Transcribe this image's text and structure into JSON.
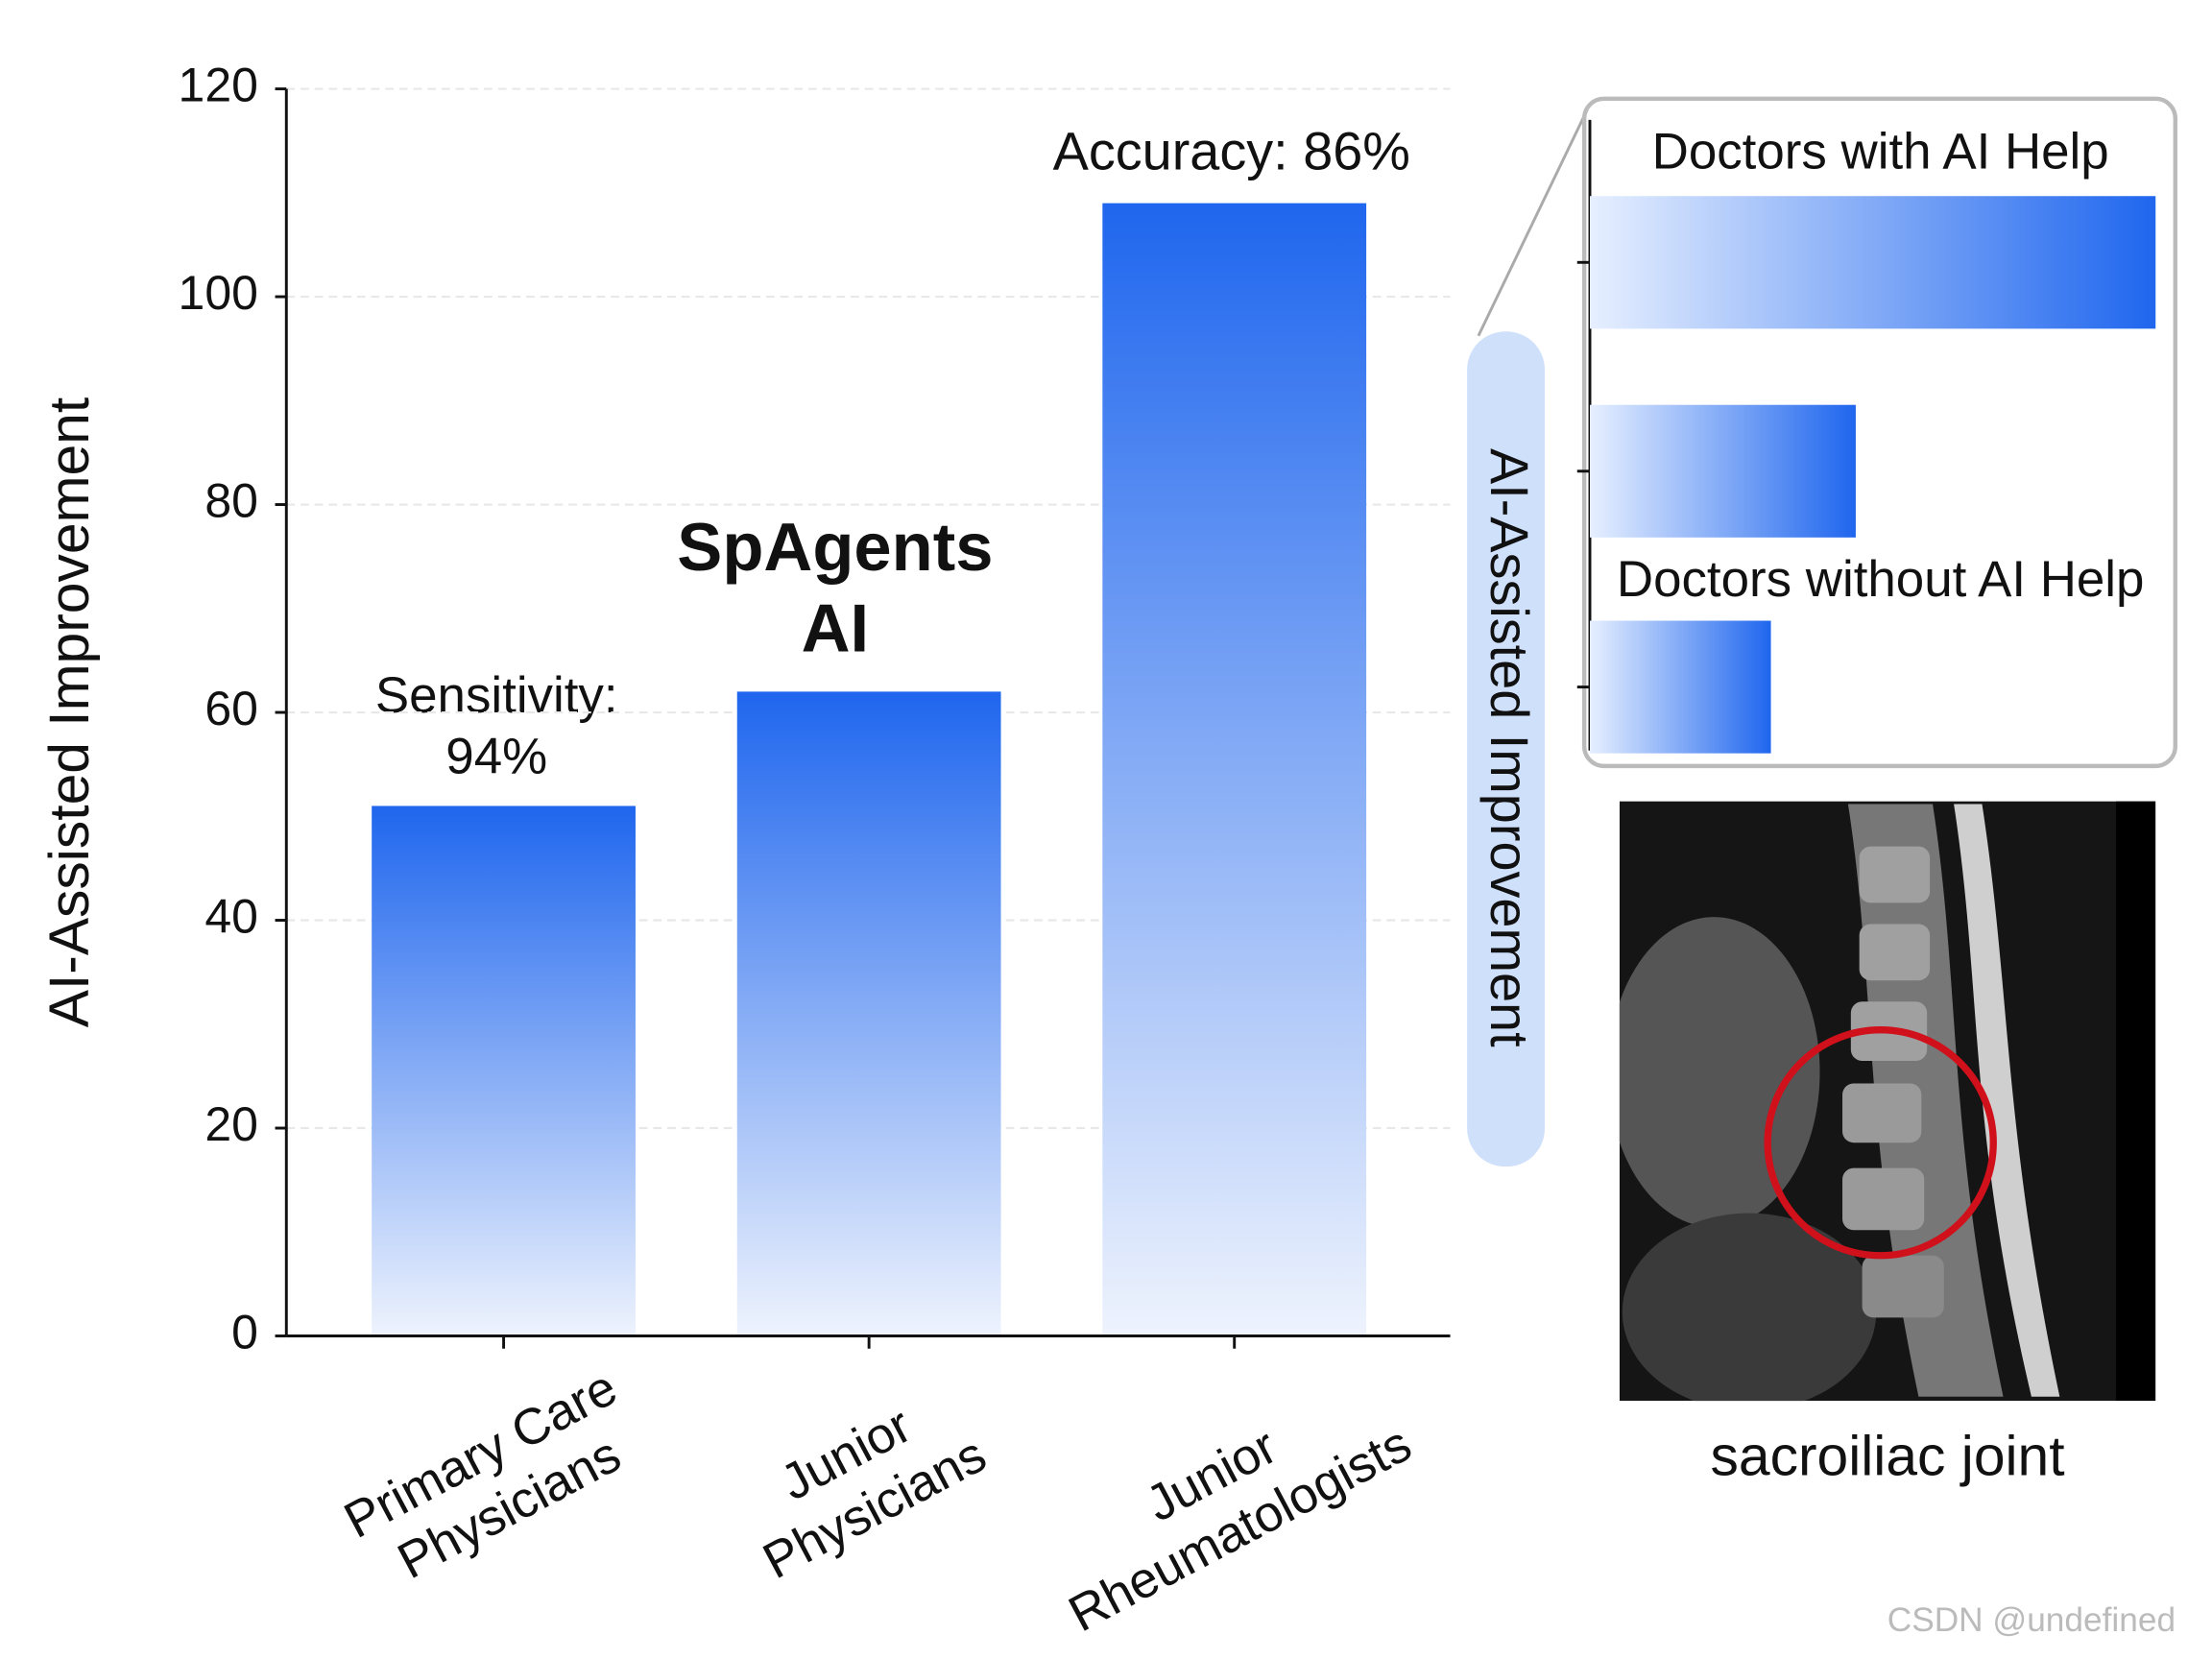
{
  "chart_data": [
    {
      "type": "bar",
      "y_label": "AI-Assisted Improvement",
      "categories": [
        "Primary Care\nPhysicians",
        "Junior\nPhysicians",
        "Junior\nRheumatologists"
      ],
      "values": [
        51,
        62,
        109
      ],
      "color": "#1f66ee",
      "ylim": [
        0,
        120
      ],
      "yticks": [
        0,
        20,
        40,
        60,
        80,
        100,
        120
      ],
      "grid": true,
      "annotations": [
        "Sensitivity:\n94%",
        "SpAgents\nAI",
        "Accuracy: 86%"
      ]
    },
    {
      "type": "hbar",
      "y_label": "AI-Assisted Improvement",
      "categories": [
        "Doctors with AI Help",
        null,
        "Doctors without AI Help"
      ],
      "values": [
        100,
        47,
        32
      ],
      "color": "#1f66ee",
      "xlim": [
        0,
        100
      ]
    }
  ],
  "image": {
    "caption": "sacroiliac joint"
  },
  "watermark": "CSDN @undefined"
}
